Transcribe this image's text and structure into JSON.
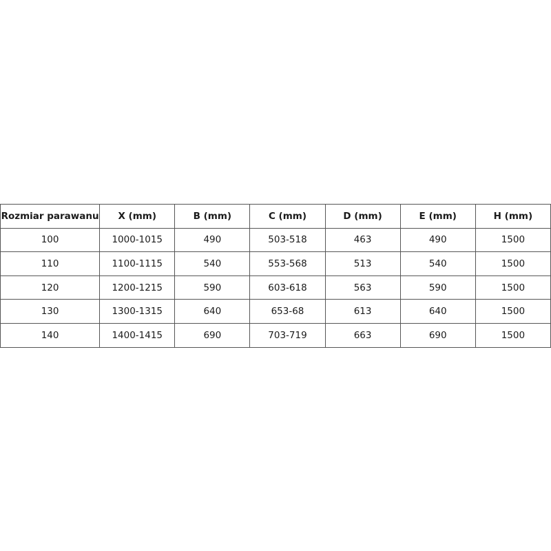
{
  "table": {
    "headers": [
      "Rozmiar parawanu",
      "X (mm)",
      "B (mm)",
      "C (mm)",
      "D (mm)",
      "E (mm)",
      "H (mm)"
    ],
    "rows": [
      [
        "100",
        "1000-1015",
        "490",
        "503-518",
        "463",
        "490",
        "1500"
      ],
      [
        "110",
        "1100-1115",
        "540",
        "553-568",
        "513",
        "540",
        "1500"
      ],
      [
        "120",
        "1200-1215",
        "590",
        "603-618",
        "563",
        "590",
        "1500"
      ],
      [
        "130",
        "1300-1315",
        "640",
        "653-68",
        "613",
        "640",
        "1500"
      ],
      [
        "140",
        "1400-1415",
        "690",
        "703-719",
        "663",
        "690",
        "1500"
      ]
    ]
  }
}
